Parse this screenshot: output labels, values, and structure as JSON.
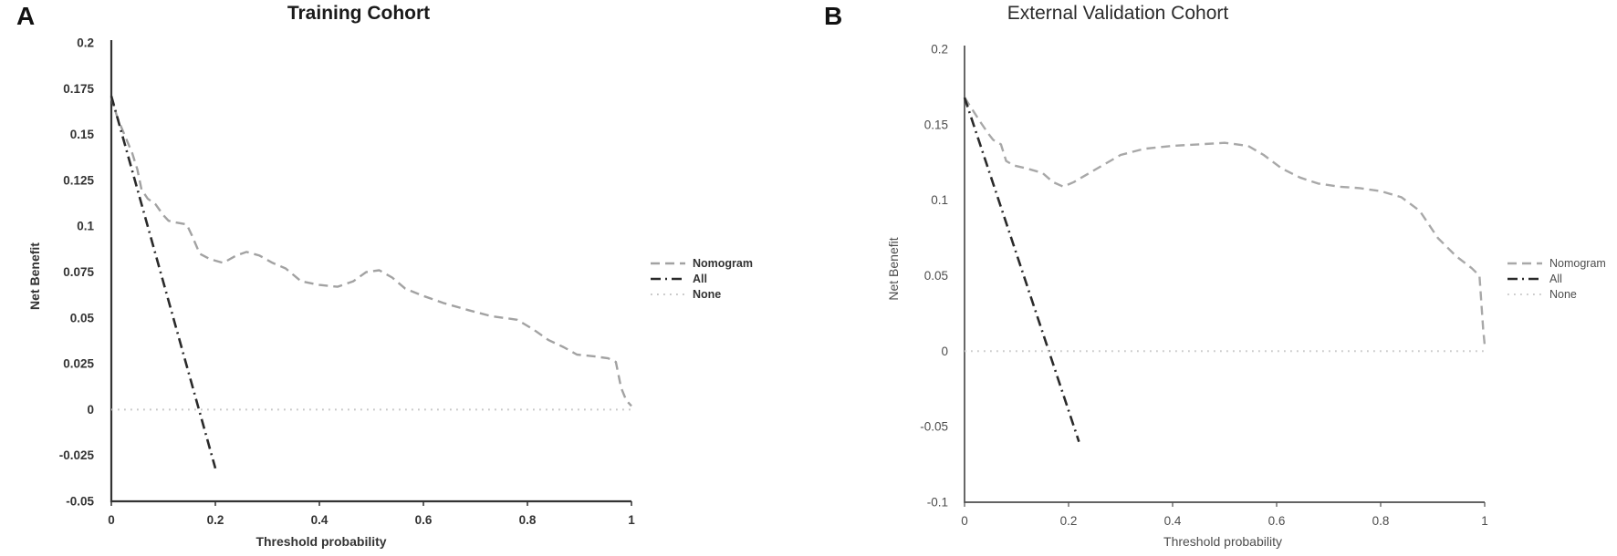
{
  "chart_data": [
    {
      "type": "line",
      "corner_label": "A",
      "title": "Training Cohort",
      "xlabel": "Threshold probability",
      "ylabel": "Net Benefit",
      "xlim": [
        0,
        1
      ],
      "ylim": [
        -0.05,
        0.2
      ],
      "grid": false,
      "legend_position": "right-outside",
      "xticks": {
        "values": [
          0,
          0.2,
          0.4,
          0.6,
          0.8,
          1
        ],
        "labels": [
          "0",
          "0.2",
          "0.4",
          "0.6",
          "0.8",
          "1"
        ]
      },
      "yticks": {
        "values": [
          0.2,
          0.175,
          0.15,
          0.125,
          0.1,
          0.075,
          0.05,
          0.025,
          0,
          -0.025,
          -0.05
        ],
        "labels": [
          "0.2",
          "0.175",
          "0.15",
          "0.125",
          "0.1",
          "0.075",
          "0.05",
          "0.025",
          "0",
          "-0.025",
          "-0.05"
        ]
      },
      "series": [
        {
          "name": "Nomogram",
          "style": "dashed",
          "color": "#a2a2a2",
          "points": [
            [
              0,
              0.17
            ],
            [
              0.012,
              0.159
            ],
            [
              0.025,
              0.15
            ],
            [
              0.04,
              0.14
            ],
            [
              0.05,
              0.131
            ],
            [
              0.058,
              0.12
            ],
            [
              0.07,
              0.115
            ],
            [
              0.085,
              0.112
            ],
            [
              0.1,
              0.106
            ],
            [
              0.11,
              0.103
            ],
            [
              0.125,
              0.102
            ],
            [
              0.145,
              0.101
            ],
            [
              0.155,
              0.095
            ],
            [
              0.17,
              0.085
            ],
            [
              0.19,
              0.082
            ],
            [
              0.215,
              0.08
            ],
            [
              0.24,
              0.084
            ],
            [
              0.26,
              0.086
            ],
            [
              0.285,
              0.084
            ],
            [
              0.31,
              0.08
            ],
            [
              0.335,
              0.077
            ],
            [
              0.365,
              0.07
            ],
            [
              0.4,
              0.068
            ],
            [
              0.435,
              0.067
            ],
            [
              0.465,
              0.07
            ],
            [
              0.49,
              0.075
            ],
            [
              0.515,
              0.076
            ],
            [
              0.54,
              0.072
            ],
            [
              0.565,
              0.066
            ],
            [
              0.6,
              0.062
            ],
            [
              0.64,
              0.058
            ],
            [
              0.69,
              0.054
            ],
            [
              0.73,
              0.051
            ],
            [
              0.78,
              0.049
            ],
            [
              0.81,
              0.044
            ],
            [
              0.84,
              0.038
            ],
            [
              0.87,
              0.034
            ],
            [
              0.895,
              0.03
            ],
            [
              0.93,
              0.029
            ],
            [
              0.955,
              0.028
            ],
            [
              0.97,
              0.026
            ],
            [
              0.98,
              0.012
            ],
            [
              0.99,
              0.005
            ],
            [
              1.0,
              0.002
            ]
          ]
        },
        {
          "name": "All",
          "style": "dashdot",
          "color": "#2a2a2a",
          "points": [
            [
              0,
              0.171
            ],
            [
              0.2,
              -0.032
            ]
          ]
        },
        {
          "name": "None",
          "style": "dotted",
          "color": "#c6c6c6",
          "points": [
            [
              0,
              0
            ],
            [
              1,
              0
            ]
          ]
        }
      ]
    },
    {
      "type": "line",
      "corner_label": "B",
      "title": "External Validation Cohort",
      "xlabel": "Threshold probability",
      "ylabel": "Net Benefit",
      "xlim": [
        0,
        1
      ],
      "ylim": [
        -0.1,
        0.2
      ],
      "grid": false,
      "legend_position": "right-outside",
      "xticks": {
        "values": [
          0,
          0.2,
          0.4,
          0.6,
          0.8,
          1
        ],
        "labels": [
          "0",
          "0.2",
          "0.4",
          "0.6",
          "0.8",
          "1"
        ]
      },
      "yticks": {
        "values": [
          0.2,
          0.15,
          0.1,
          0.05,
          0,
          -0.05,
          -0.1
        ],
        "labels": [
          "0.2",
          "0.15",
          "0.1",
          "0.05",
          "0",
          "-0.05",
          "-0.1"
        ]
      },
      "series": [
        {
          "name": "Nomogram",
          "style": "dashed",
          "color": "#a8a8a8",
          "points": [
            [
              0,
              0.168
            ],
            [
              0.015,
              0.16
            ],
            [
              0.03,
              0.152
            ],
            [
              0.046,
              0.144
            ],
            [
              0.055,
              0.14
            ],
            [
              0.07,
              0.137
            ],
            [
              0.08,
              0.126
            ],
            [
              0.095,
              0.123
            ],
            [
              0.12,
              0.121
            ],
            [
              0.15,
              0.118
            ],
            [
              0.17,
              0.112
            ],
            [
              0.19,
              0.109
            ],
            [
              0.21,
              0.112
            ],
            [
              0.24,
              0.118
            ],
            [
              0.27,
              0.124
            ],
            [
              0.3,
              0.13
            ],
            [
              0.345,
              0.134
            ],
            [
              0.4,
              0.136
            ],
            [
              0.45,
              0.137
            ],
            [
              0.5,
              0.138
            ],
            [
              0.545,
              0.136
            ],
            [
              0.575,
              0.13
            ],
            [
              0.61,
              0.121
            ],
            [
              0.645,
              0.115
            ],
            [
              0.68,
              0.111
            ],
            [
              0.72,
              0.109
            ],
            [
              0.76,
              0.108
            ],
            [
              0.8,
              0.106
            ],
            [
              0.84,
              0.102
            ],
            [
              0.875,
              0.093
            ],
            [
              0.91,
              0.075
            ],
            [
              0.945,
              0.063
            ],
            [
              0.975,
              0.055
            ],
            [
              0.99,
              0.05
            ],
            [
              0.997,
              0.015
            ],
            [
              1.0,
              0.004
            ]
          ]
        },
        {
          "name": "All",
          "style": "dashdot",
          "color": "#2a2a2a",
          "points": [
            [
              0,
              0.168
            ],
            [
              0.22,
              -0.06
            ]
          ]
        },
        {
          "name": "None",
          "style": "dotted",
          "color": "#cccccc",
          "points": [
            [
              0,
              0
            ],
            [
              1,
              0
            ]
          ]
        }
      ]
    }
  ]
}
